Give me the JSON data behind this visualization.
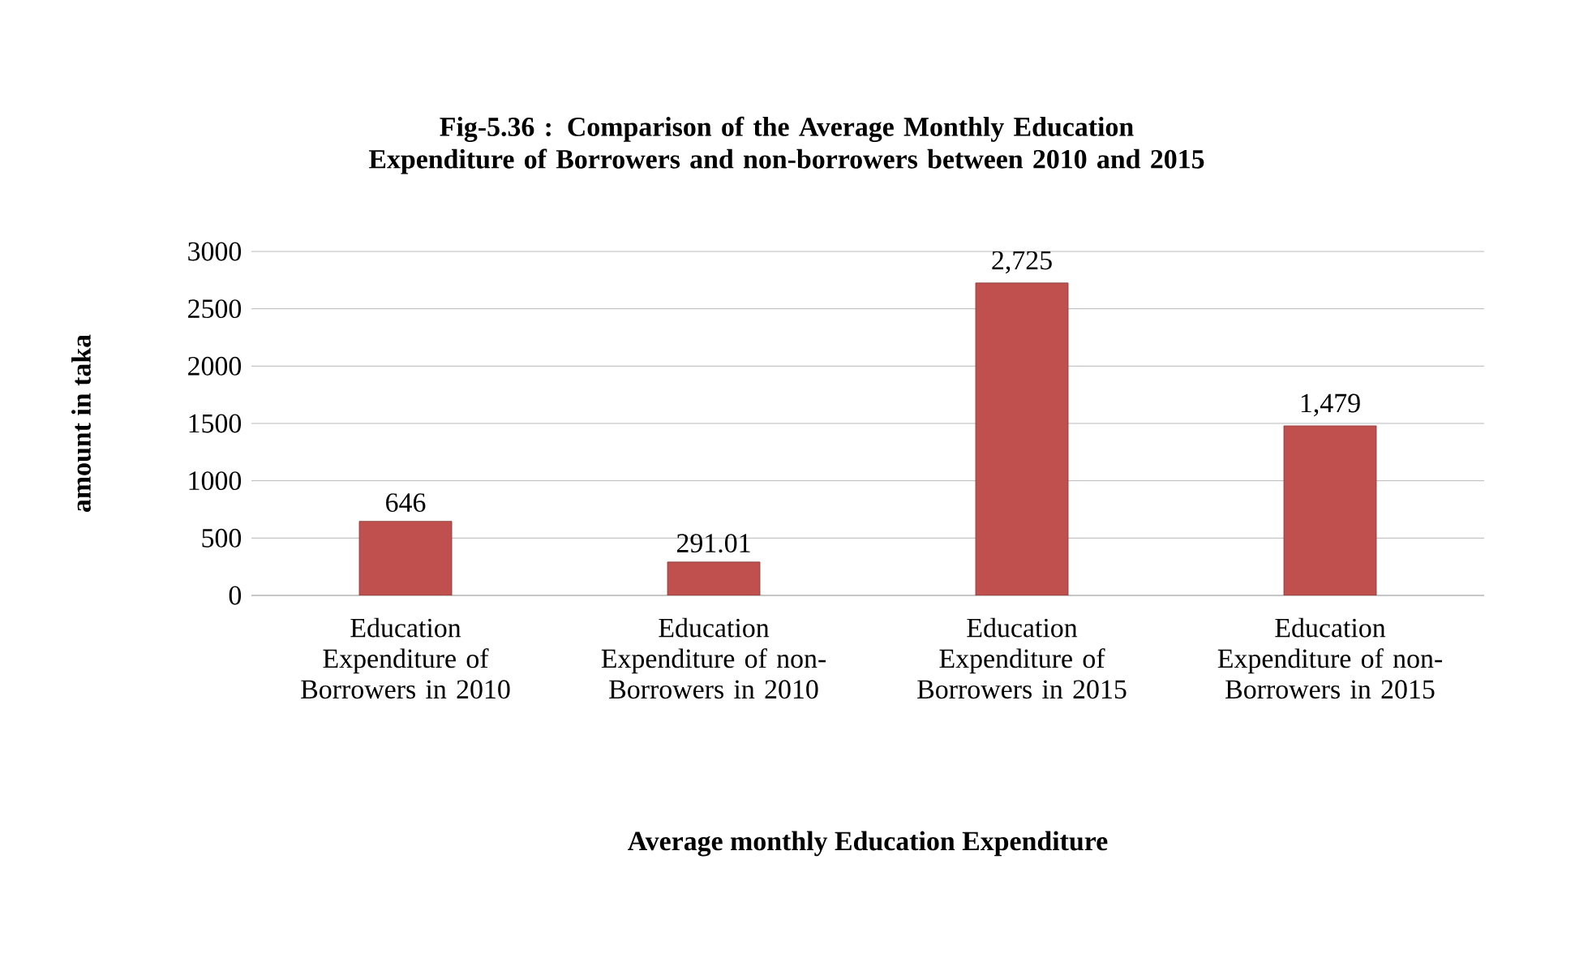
{
  "chart_data": {
    "type": "bar",
    "title": "Fig-5.36 : Comparison of the Average Monthly Education Expenditure of Borrowers and non-borrowers between 2010 and 2015",
    "xlabel": "Average monthly Education Expenditure",
    "ylabel": "amount in taka",
    "categories": [
      "Education Expenditure of Borrowers in 2010",
      "Education Expenditure of non-Borrowers in 2010",
      "Education Expenditure of Borrowers in 2015",
      "Education Expenditure of non-Borrowers in 2015"
    ],
    "values": [
      646,
      291.01,
      2725,
      1479
    ],
    "value_labels": [
      "646",
      "291.01",
      "2,725",
      "1,479"
    ],
    "color": "#c0504d",
    "ylim": [
      0,
      3000
    ],
    "yticks": [
      0,
      500,
      1000,
      1500,
      2000,
      2500,
      3000
    ],
    "grid": "y"
  }
}
